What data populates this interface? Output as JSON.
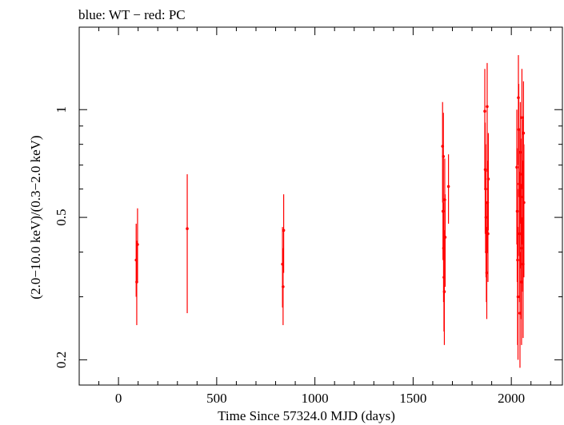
{
  "chart_data": {
    "type": "scatter",
    "title": "blue: WT − red: PC",
    "xlabel": "Time Since 57324.0 MJD (days)",
    "ylabel": "(2.0−10.0 keV)/(0.3−2.0 keV)",
    "xscale": "linear",
    "yscale": "log",
    "xlim": [
      -200,
      2260
    ],
    "ylim": [
      0.17,
      1.7
    ],
    "x_ticks": [
      0,
      500,
      1000,
      1500,
      2000
    ],
    "x_tick_labels": [
      "0",
      "500",
      "1000",
      "1500",
      "2000"
    ],
    "y_ticks": [
      0.2,
      0.5,
      1
    ],
    "y_tick_labels": [
      "0.2",
      "0.5",
      "1"
    ],
    "grid": false,
    "colors": {
      "PC": "#ff0000",
      "WT": "#0000ff"
    },
    "series": [
      {
        "name": "PC",
        "color": "#ff0000",
        "points": [
          {
            "x": 90,
            "y": 0.38,
            "lo": 0.3,
            "hi": 0.48
          },
          {
            "x": 93,
            "y": 0.33,
            "lo": 0.25,
            "hi": 0.43
          },
          {
            "x": 97,
            "y": 0.42,
            "lo": 0.33,
            "hi": 0.53
          },
          {
            "x": 350,
            "y": 0.465,
            "lo": 0.27,
            "hi": 0.66
          },
          {
            "x": 835,
            "y": 0.37,
            "lo": 0.28,
            "hi": 0.47
          },
          {
            "x": 838,
            "y": 0.32,
            "lo": 0.25,
            "hi": 0.41
          },
          {
            "x": 841,
            "y": 0.46,
            "lo": 0.35,
            "hi": 0.58
          },
          {
            "x": 1650,
            "y": 0.79,
            "lo": 0.55,
            "hi": 1.05
          },
          {
            "x": 1652,
            "y": 0.52,
            "lo": 0.38,
            "hi": 0.68
          },
          {
            "x": 1654,
            "y": 0.74,
            "lo": 0.53,
            "hi": 0.98
          },
          {
            "x": 1655,
            "y": 0.41,
            "lo": 0.29,
            "hi": 0.55
          },
          {
            "x": 1657,
            "y": 0.34,
            "lo": 0.24,
            "hi": 0.46
          },
          {
            "x": 1659,
            "y": 0.31,
            "lo": 0.22,
            "hi": 0.42
          },
          {
            "x": 1661,
            "y": 0.56,
            "lo": 0.41,
            "hi": 0.73
          },
          {
            "x": 1663,
            "y": 0.44,
            "lo": 0.32,
            "hi": 0.58
          },
          {
            "x": 1680,
            "y": 0.61,
            "lo": 0.48,
            "hi": 0.75
          },
          {
            "x": 1865,
            "y": 0.99,
            "lo": 0.6,
            "hi": 1.3
          },
          {
            "x": 1867,
            "y": 0.68,
            "lo": 0.45,
            "hi": 0.92
          },
          {
            "x": 1869,
            "y": 0.6,
            "lo": 0.4,
            "hi": 0.8
          },
          {
            "x": 1871,
            "y": 0.5,
            "lo": 0.34,
            "hi": 0.68
          },
          {
            "x": 1873,
            "y": 0.4,
            "lo": 0.29,
            "hi": 0.55
          },
          {
            "x": 1875,
            "y": 0.35,
            "lo": 0.26,
            "hi": 0.47
          },
          {
            "x": 1877,
            "y": 1.02,
            "lo": 0.67,
            "hi": 1.35
          },
          {
            "x": 1879,
            "y": 0.55,
            "lo": 0.4,
            "hi": 0.72
          },
          {
            "x": 1881,
            "y": 0.45,
            "lo": 0.33,
            "hi": 0.6
          },
          {
            "x": 1883,
            "y": 0.64,
            "lo": 0.46,
            "hi": 0.86
          },
          {
            "x": 2028,
            "y": 0.69,
            "lo": 0.42,
            "hi": 1.0
          },
          {
            "x": 2030,
            "y": 0.52,
            "lo": 0.33,
            "hi": 0.78
          },
          {
            "x": 2032,
            "y": 0.38,
            "lo": 0.22,
            "hi": 0.6
          },
          {
            "x": 2034,
            "y": 0.3,
            "lo": 0.2,
            "hi": 0.47
          },
          {
            "x": 2036,
            "y": 1.08,
            "lo": 0.7,
            "hi": 1.42
          },
          {
            "x": 2038,
            "y": 0.88,
            "lo": 0.57,
            "hi": 1.18
          },
          {
            "x": 2040,
            "y": 0.62,
            "lo": 0.39,
            "hi": 0.88
          },
          {
            "x": 2042,
            "y": 0.45,
            "lo": 0.29,
            "hi": 0.67
          },
          {
            "x": 2044,
            "y": 0.27,
            "lo": 0.19,
            "hi": 0.4
          },
          {
            "x": 2046,
            "y": 0.76,
            "lo": 0.48,
            "hi": 1.05
          },
          {
            "x": 2048,
            "y": 0.57,
            "lo": 0.36,
            "hi": 0.83
          },
          {
            "x": 2050,
            "y": 0.41,
            "lo": 0.26,
            "hi": 0.62
          },
          {
            "x": 2052,
            "y": 0.33,
            "lo": 0.22,
            "hi": 0.5
          },
          {
            "x": 2054,
            "y": 0.95,
            "lo": 0.6,
            "hi": 1.3
          },
          {
            "x": 2056,
            "y": 0.66,
            "lo": 0.42,
            "hi": 0.94
          },
          {
            "x": 2058,
            "y": 0.49,
            "lo": 0.31,
            "hi": 0.72
          },
          {
            "x": 2060,
            "y": 0.37,
            "lo": 0.23,
            "hi": 0.56
          },
          {
            "x": 2062,
            "y": 0.86,
            "lo": 0.54,
            "hi": 1.2
          },
          {
            "x": 2064,
            "y": 0.55,
            "lo": 0.34,
            "hi": 0.8
          }
        ]
      }
    ]
  }
}
